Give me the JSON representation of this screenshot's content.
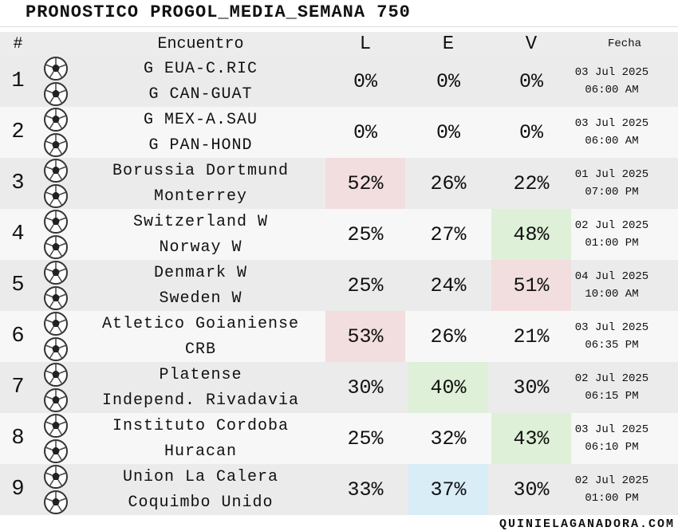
{
  "header": {
    "title": "PRONOSTICO PROGOL_MEDIA_SEMANA 750"
  },
  "table": {
    "columns": [
      "#",
      "Encuentro",
      "L",
      "E",
      "V",
      "Fecha"
    ],
    "rows": [
      {
        "num": "1",
        "home": "G EUA-C.RIC",
        "away": "G CAN-GUAT",
        "l": "0%",
        "e": "0%",
        "v": "0%",
        "date": "03 Jul 2025",
        "time": "06:00 AM"
      },
      {
        "num": "2",
        "home": "G MEX-A.SAU",
        "away": "G PAN-HOND",
        "l": "0%",
        "e": "0%",
        "v": "0%",
        "date": "03 Jul 2025",
        "time": "06:00 AM"
      },
      {
        "num": "3",
        "home": "Borussia Dortmund",
        "away": "Monterrey",
        "l": "52%",
        "e": "26%",
        "v": "22%",
        "date": "01 Jul 2025",
        "time": "07:00 PM",
        "highlight": "l",
        "highlight_color": "#f2dede"
      },
      {
        "num": "4",
        "home": "Switzerland W",
        "away": "Norway W",
        "l": "25%",
        "e": "27%",
        "v": "48%",
        "date": "02 Jul 2025",
        "time": "01:00 PM",
        "highlight": "v",
        "highlight_color": "#dff0d8"
      },
      {
        "num": "5",
        "home": "Denmark W",
        "away": "Sweden W",
        "l": "25%",
        "e": "24%",
        "v": "51%",
        "date": "04 Jul 2025",
        "time": "10:00 AM",
        "highlight": "v",
        "highlight_color": "#f2dede"
      },
      {
        "num": "6",
        "home": "Atletico Goianiense",
        "away": "CRB",
        "l": "53%",
        "e": "26%",
        "v": "21%",
        "date": "03 Jul 2025",
        "time": "06:35 PM",
        "highlight": "l",
        "highlight_color": "#f2dede"
      },
      {
        "num": "7",
        "home": "Platense",
        "away": "Independ. Rivadavia",
        "l": "30%",
        "e": "40%",
        "v": "30%",
        "date": "02 Jul 2025",
        "time": "06:15 PM",
        "highlight": "e",
        "highlight_color": "#dff0d8"
      },
      {
        "num": "8",
        "home": "Instituto Cordoba",
        "away": "Huracan",
        "l": "25%",
        "e": "32%",
        "v": "43%",
        "date": "03 Jul 2025",
        "time": "06:10 PM",
        "highlight": "v",
        "highlight_color": "#dff0d8"
      },
      {
        "num": "9",
        "home": "Union La Calera",
        "away": "Coquimbo Unido",
        "l": "33%",
        "e": "37%",
        "v": "30%",
        "date": "02 Jul 2025",
        "time": "01:00 PM",
        "highlight": "e",
        "highlight_color": "#d9edf7"
      }
    ]
  },
  "footer": {
    "site": "QUINIELAGANADORA.COM"
  }
}
